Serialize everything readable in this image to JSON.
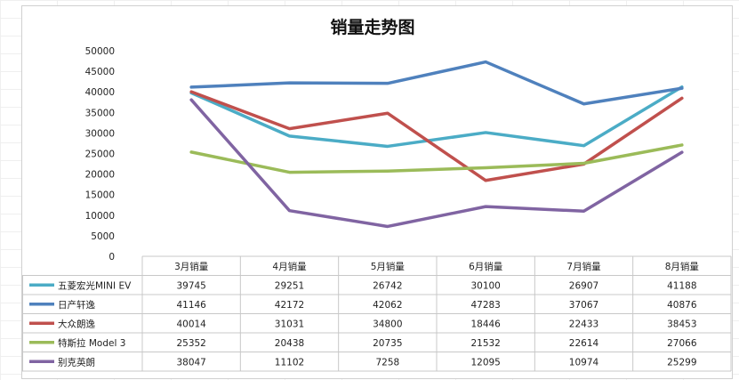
{
  "chart_data": {
    "type": "line",
    "title": "销量走势图",
    "categories": [
      "3月销量",
      "4月销量",
      "5月销量",
      "6月销量",
      "7月销量",
      "8月销量"
    ],
    "ylim": [
      0,
      50000
    ],
    "yticks": [
      0,
      5000,
      10000,
      15000,
      20000,
      25000,
      30000,
      35000,
      40000,
      45000,
      50000
    ],
    "grid": false,
    "legend": "data-table-left",
    "series": [
      {
        "name": "五菱宏光MINI EV",
        "color": "#4bacc6",
        "values": [
          39745,
          29251,
          26742,
          30100,
          26907,
          41188
        ]
      },
      {
        "name": "日产轩逸",
        "color": "#4f81bd",
        "values": [
          41146,
          42172,
          42062,
          47283,
          37067,
          40876
        ]
      },
      {
        "name": "大众朗逸",
        "color": "#c0504d",
        "values": [
          40014,
          31031,
          34800,
          18446,
          22433,
          38453
        ]
      },
      {
        "name": "特斯拉 Model 3",
        "color": "#9bbb59",
        "values": [
          25352,
          20438,
          20735,
          21532,
          22614,
          27066
        ]
      },
      {
        "name": "别克英朗",
        "color": "#8064a2",
        "values": [
          38047,
          11102,
          7258,
          12095,
          10974,
          25299
        ]
      }
    ]
  }
}
